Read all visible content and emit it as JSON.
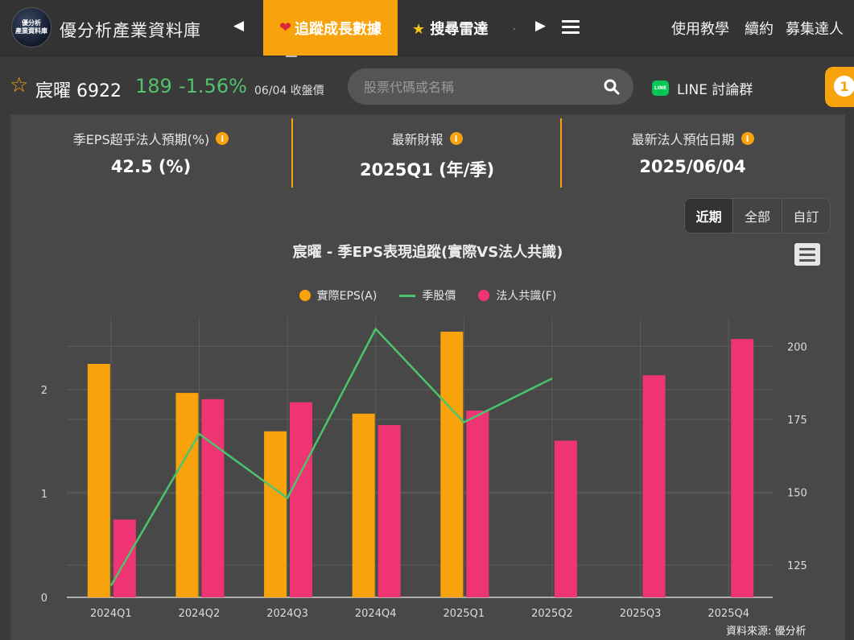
{
  "nav": {
    "logo_line1": "優分析",
    "logo_line2": "產業資料庫",
    "site_title": "優分析產業資料庫",
    "prev_arrow": "◀",
    "next_arrow": "▶",
    "active_tab_icon": "heart-icon",
    "active_tab_label": "追蹤成長數據",
    "tab2_icon": "star-icon",
    "tab2_label": "搜尋雷達",
    "more_dot": ".",
    "right_links": [
      "使用教學",
      "續約",
      "募集達人"
    ]
  },
  "stock": {
    "name_code": "宸曜 6922",
    "price": "189",
    "change": "-1.56%",
    "date_label": "06/04 收盤價",
    "price_color": "#52c26d"
  },
  "search": {
    "placeholder": "股票代碼或名稱"
  },
  "line_link": {
    "icon_text": "LINE",
    "label": "LINE 討論群"
  },
  "notification": {
    "count": "1"
  },
  "stats": [
    {
      "label": "季EPS超乎法人預期(%)",
      "value": "42.5 (%)"
    },
    {
      "label": "最新財報",
      "value": "2025Q1 (年/季)"
    },
    {
      "label": "最新法人預估日期",
      "value": "2025/06/04"
    }
  ],
  "range_buttons": [
    "近期",
    "全部",
    "自訂"
  ],
  "range_active": "近期",
  "chart_title": "宸曜 - 季EPS表現追蹤(實際VS法人共識)",
  "legend": [
    {
      "label": "實際EPS(A)",
      "color": "#f8a20c"
    },
    {
      "label": "季股價",
      "color": "#4cc46b"
    },
    {
      "label": "法人共識(F)",
      "color": "#ee3472"
    }
  ],
  "credit": "資料來源: 優分析",
  "chart_data": {
    "type": "bar",
    "title": "宸曜 - 季EPS表現追蹤(實際VS法人共識)",
    "categories": [
      "2024Q1",
      "2024Q2",
      "2024Q3",
      "2024Q4",
      "2025Q1",
      "2025Q2",
      "2025Q3",
      "2025Q4"
    ],
    "series": [
      {
        "name": "實際EPS(A)",
        "type": "bar",
        "axis": "left",
        "color": "#f8a20c",
        "values": [
          2.25,
          1.97,
          1.6,
          1.77,
          2.56,
          null,
          null,
          null
        ]
      },
      {
        "name": "法人共識(F)",
        "type": "bar",
        "axis": "left",
        "color": "#ee3472",
        "values": [
          0.75,
          1.91,
          1.88,
          1.66,
          1.8,
          1.51,
          2.14,
          2.49
        ]
      },
      {
        "name": "季股價",
        "type": "line",
        "axis": "right",
        "color": "#4cc46b",
        "values": [
          118,
          170,
          148,
          206,
          174,
          189,
          null,
          null
        ]
      }
    ],
    "left_ticks": [
      0,
      1,
      2
    ],
    "left_range": [
      0,
      2.7
    ],
    "right_ticks": [
      125,
      150,
      175,
      200
    ],
    "right_range": [
      114,
      210
    ],
    "grid": true,
    "legend_position": "top-center"
  }
}
